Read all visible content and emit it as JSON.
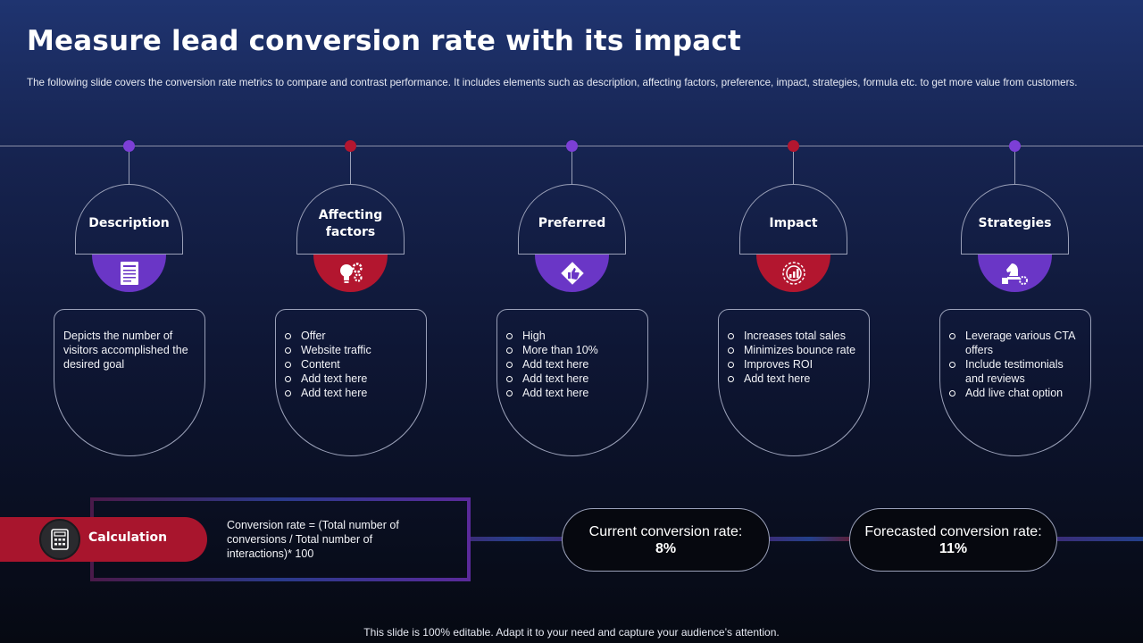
{
  "title": "Measure lead conversion rate with its impact",
  "subtitle": "The following slide covers the conversion rate metrics to compare and contrast performance. It includes elements such as description, affecting factors, preference, impact, strategies, formula etc. to get more value from customers.",
  "columns": [
    {
      "heading": "Description",
      "icon": "document-icon",
      "color": "#6a36c6",
      "text": "Depicts the number of visitors accomplished the desired goal",
      "items": []
    },
    {
      "heading": "Affecting factors",
      "icon": "lightbulb-gears-icon",
      "color": "#b3162f",
      "text": "",
      "items": [
        "Offer",
        "Website traffic",
        "Content",
        "Add text here",
        "Add text here"
      ]
    },
    {
      "heading": "Preferred",
      "icon": "diamond-thumbs-up-icon",
      "color": "#6a36c6",
      "text": "",
      "items": [
        "High",
        "More than 10%",
        "Add text here",
        "Add text here",
        "Add text here"
      ]
    },
    {
      "heading": "Impact",
      "icon": "target-growth-icon",
      "color": "#b3162f",
      "text": "",
      "items": [
        "Increases total sales",
        "Minimizes bounce rate",
        "Improves ROI",
        "Add text here"
      ]
    },
    {
      "heading": "Strategies",
      "icon": "chess-knight-icon",
      "color": "#6a36c6",
      "text": "",
      "items": [
        "Leverage various CTA offers",
        "Include testimonials and reviews",
        "Add live chat option"
      ]
    }
  ],
  "calculation": {
    "label": "Calculation",
    "icon": "calculator-icon",
    "formula": "Conversion rate = (Total number of conversions / Total number of interactions)* 100"
  },
  "current_rate": {
    "label": "Current conversion rate:",
    "value": "8%"
  },
  "forecast_rate": {
    "label": "Forecasted conversion rate:",
    "value": "11%"
  },
  "footer": "This slide is 100% editable. Adapt it to your need and capture your audience’s attention."
}
